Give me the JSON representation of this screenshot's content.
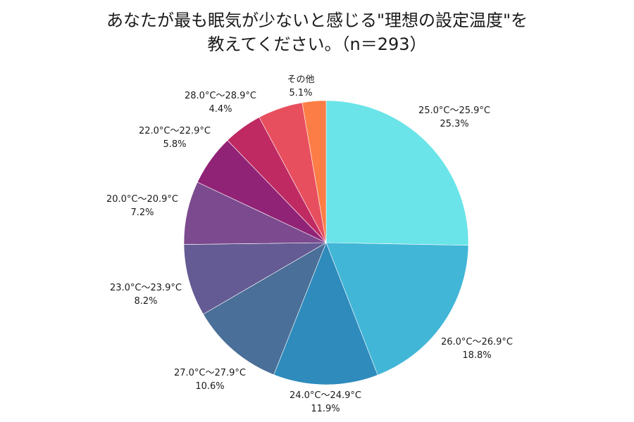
{
  "chart_data": {
    "type": "pie",
    "title_lines": [
      "あなたが最も眠気が少ないと感じる\"理想の設定温度\"を",
      "教えてください。（n＝293）"
    ],
    "start_angle": "12 o'clock",
    "direction": "clockwise",
    "slices": [
      {
        "label": "25.0°C～25.9°C",
        "value": 25.3,
        "value_text": "25.3%",
        "color": "#6ae4e8"
      },
      {
        "label": "26.0°C～26.9°C",
        "value": 18.8,
        "value_text": "18.8%",
        "color": "#42b6d7"
      },
      {
        "label": "24.0°C～24.9°C",
        "value": 11.9,
        "value_text": "11.9%",
        "color": "#2e8bbc"
      },
      {
        "label": "27.0°C～27.9°C",
        "value": 10.6,
        "value_text": "10.6%",
        "color": "#4a6f98"
      },
      {
        "label": "23.0°C～23.9°C",
        "value": 8.2,
        "value_text": "8.2%",
        "color": "#645b94"
      },
      {
        "label": "20.0°C～20.9°C",
        "value": 7.2,
        "value_text": "7.2%",
        "color": "#7c4a8e"
      },
      {
        "label": "22.0°C～22.9°C",
        "value": 5.8,
        "value_text": "5.8%",
        "color": "#912376"
      },
      {
        "label": "28.0°C～28.9°C",
        "value": 4.4,
        "value_text": "4.4%",
        "color": "#c02a62"
      },
      {
        "label": "その他",
        "value": 5.1,
        "value_text": "5.1%",
        "color": "#e84f5e"
      },
      {
        "label": "",
        "value": 2.7,
        "value_text": "",
        "color": "#fd7d46"
      }
    ]
  }
}
